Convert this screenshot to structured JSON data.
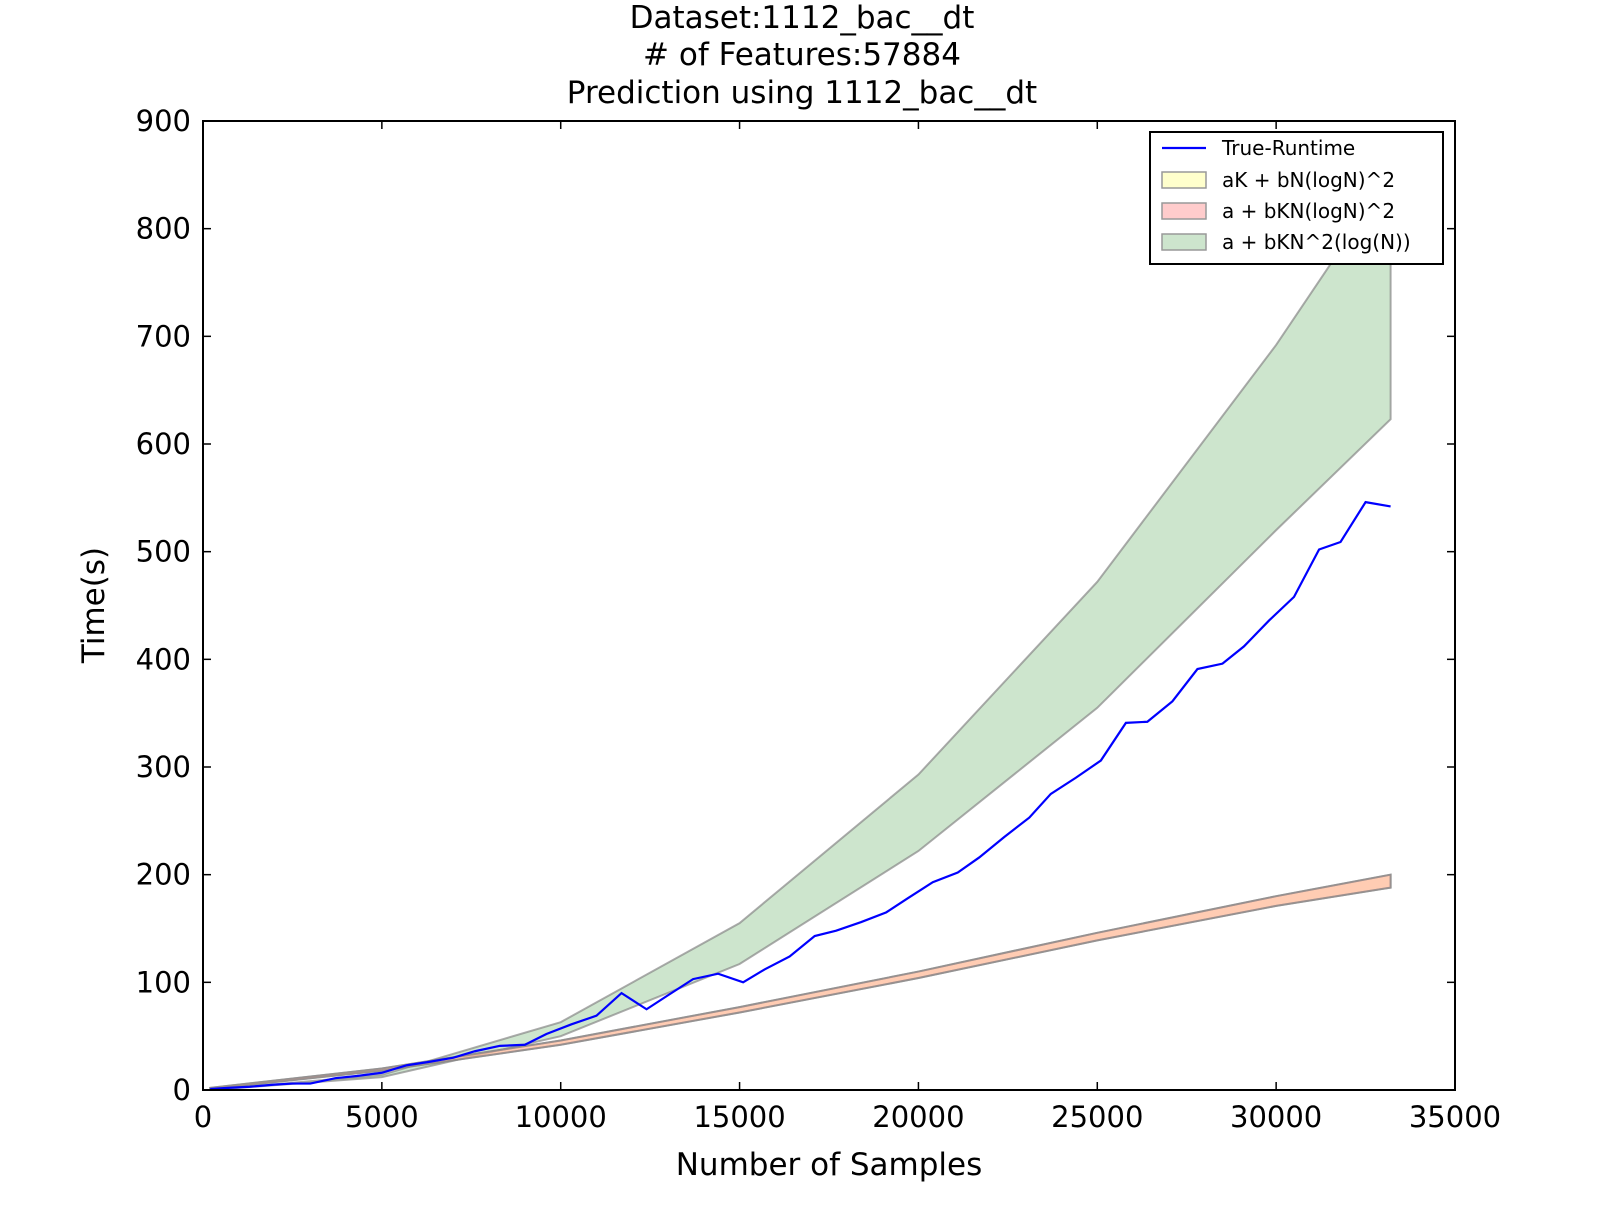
{
  "chart_data": {
    "type": "line",
    "title_lines": [
      "Dataset:1112_bac__dt",
      "# of Features:57884",
      "Prediction using 1112_bac__dt"
    ],
    "xlabel": "Number of Samples",
    "ylabel": "Time(s)",
    "xlim": [
      0,
      35000
    ],
    "ylim": [
      0,
      900
    ],
    "xticks": [
      0,
      5000,
      10000,
      15000,
      20000,
      25000,
      30000,
      35000
    ],
    "yticks": [
      0,
      100,
      200,
      300,
      400,
      500,
      600,
      700,
      800,
      900
    ],
    "xtick_labels": [
      "0",
      "5000",
      "10000",
      "15000",
      "20000",
      "25000",
      "30000",
      "35000"
    ],
    "ytick_labels": [
      "0",
      "100",
      "200",
      "300",
      "400",
      "500",
      "600",
      "700",
      "800",
      "900"
    ],
    "grid": false,
    "legend_position": "top-right",
    "series": [
      {
        "name": "True-Runtime",
        "kind": "line",
        "color": "#0000ff",
        "x": [
          200,
          700,
          1300,
          2000,
          2500,
          3000,
          3700,
          4300,
          5000,
          5700,
          6300,
          7000,
          7600,
          8300,
          9000,
          9600,
          10300,
          11000,
          11700,
          12400,
          13000,
          13700,
          14400,
          15100,
          15700,
          16400,
          17100,
          17700,
          18400,
          19100,
          19700,
          20400,
          21100,
          21700,
          22400,
          23100,
          23700,
          24400,
          25100,
          25800,
          26400,
          27100,
          27800,
          28500,
          29100,
          29800,
          30500,
          31200,
          31800,
          32500,
          33200
        ],
        "y": [
          1,
          2,
          3,
          5,
          6,
          6,
          11,
          13,
          16,
          23,
          26,
          30,
          36,
          41,
          42,
          52,
          61,
          69,
          90,
          75,
          88,
          103,
          108,
          100,
          112,
          124,
          143,
          148,
          156,
          165,
          178,
          193,
          202,
          216,
          235,
          253,
          275,
          290,
          306,
          341,
          342,
          361,
          391,
          396,
          412,
          436,
          458,
          502,
          509,
          546,
          542
        ]
      },
      {
        "name": "aK + bN(logN)^2",
        "kind": "band",
        "color": "#ffff99",
        "x": [
          200,
          5000,
          10000,
          15000,
          20000,
          25000,
          30000,
          33200
        ],
        "lower": [
          1,
          18,
          42,
          72,
          104,
          139,
          171,
          188
        ],
        "upper": [
          2,
          20,
          46,
          77,
          110,
          146,
          180,
          200
        ]
      },
      {
        "name": "a + bKN(logN)^2",
        "kind": "band",
        "color": "#ff9999",
        "x": [
          200,
          5000,
          10000,
          15000,
          20000,
          25000,
          30000,
          33200
        ],
        "lower": [
          1,
          18,
          42,
          72,
          104,
          139,
          171,
          188
        ],
        "upper": [
          2,
          20,
          46,
          77,
          110,
          146,
          180,
          200
        ]
      },
      {
        "name": "a + bKN^2(log(N))",
        "kind": "band",
        "color": "#9bcc9b",
        "x": [
          200,
          5000,
          10000,
          15000,
          20000,
          25000,
          30000,
          33200
        ],
        "lower": [
          0,
          12,
          50,
          117,
          222,
          355,
          520,
          623
        ],
        "upper": [
          0,
          14,
          63,
          155,
          293,
          472,
          692,
          850
        ]
      }
    ]
  }
}
